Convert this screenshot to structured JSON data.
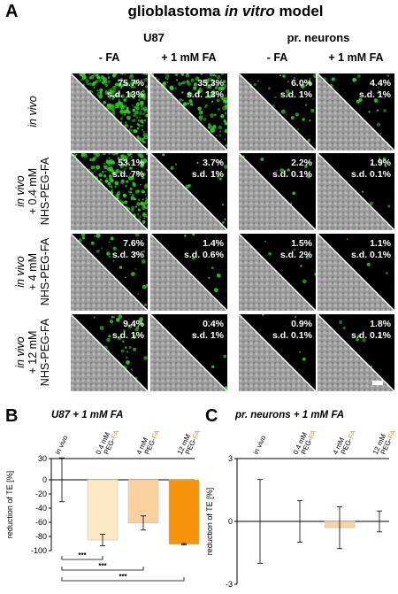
{
  "panelA": {
    "letter": "A",
    "title_plain": "glioblastoma ",
    "title_italic": "in vitro",
    "title_end": " model",
    "groups": [
      "U87",
      "pr. neurons"
    ],
    "columns": [
      "- FA",
      "+ 1 mM FA",
      "- FA",
      "+ 1 mM FA"
    ],
    "rows": [
      {
        "l1": "in vivo",
        "l2": "",
        "l3": ""
      },
      {
        "l1": "in vivo",
        "l2": "+ 0.4 mM",
        "l3": "NHS-PEG-FA"
      },
      {
        "l1": "in vivo",
        "l2": "+ 4 mM",
        "l3": "NHS-PEG-FA"
      },
      {
        "l1": "in vivo",
        "l2": "+ 12 mM",
        "l3": "NHS-PEG-FA"
      }
    ],
    "tiles": [
      [
        {
          "p": "75.7%",
          "s": "s.d. 13%",
          "green": 0.95
        },
        {
          "p": "35.3%",
          "s": "s.d. 13%",
          "green": 0.55
        },
        {
          "p": "6.0%",
          "s": "s.d. 1%",
          "green": 0.12
        },
        {
          "p": "4.4%",
          "s": "s.d. 1%",
          "green": 0.08
        }
      ],
      [
        {
          "p": "53.1%",
          "s": "s.d. 7%",
          "green": 0.8
        },
        {
          "p": "3.7%",
          "s": "s.d. 1%",
          "green": 0.06
        },
        {
          "p": "2.2%",
          "s": "s.d. 0.1%",
          "green": 0.04
        },
        {
          "p": "1.9%",
          "s": "s.d. 0.1%",
          "green": 0.04
        }
      ],
      [
        {
          "p": "7.6%",
          "s": "s.d. 3%",
          "green": 0.12
        },
        {
          "p": "1.4%",
          "s": "s.d. 0.6%",
          "green": 0.03
        },
        {
          "p": "1.5%",
          "s": "s.d. 2%",
          "green": 0.03
        },
        {
          "p": "1.1%",
          "s": "s.d. 0.1%",
          "green": 0.02
        }
      ],
      [
        {
          "p": "9.4%",
          "s": "s.d. 1%",
          "green": 0.15
        },
        {
          "p": "0.4%",
          "s": "s.d. 1%",
          "green": 0.02
        },
        {
          "p": "0.9%",
          "s": "s.d. 0.1%",
          "green": 0.02
        },
        {
          "p": "1.8%",
          "s": "s.d. 0.1%",
          "green": 0.03
        }
      ]
    ]
  },
  "chart_data": [
    {
      "panel": "B",
      "type": "bar",
      "title": "U87 + 1 mM FA",
      "categories": [
        "in vivo",
        "0.4 mM PEG-FA",
        "4 mM PEG-FA",
        "12 mM PEG-FA"
      ],
      "category_lines": [
        [
          "in vivo",
          ""
        ],
        [
          "0.4 mM",
          "PEG-FA"
        ],
        [
          "4 mM",
          "PEG-FA"
        ],
        [
          "12 mM",
          "PEG-FA"
        ]
      ],
      "values": [
        0,
        -85,
        -61,
        -91
      ],
      "errors": [
        31,
        8,
        10,
        1
      ],
      "colors": [
        "#ffffff",
        "#fde9c4",
        "#fbd29d",
        "#f7930a"
      ],
      "ylabel": "reduction of TE [%]",
      "ylim": [
        -100,
        30
      ],
      "yticks": [
        30,
        0,
        -20,
        -40,
        -60,
        -80,
        -100
      ],
      "significance": [
        "***",
        "***",
        "***"
      ]
    },
    {
      "panel": "C",
      "type": "bar",
      "title": "pr. neurons + 1 mM FA",
      "categories": [
        "in vivo",
        "0.4 mM PEG-FA",
        "4 mM PEG-FA",
        "12 mM PEG-FA"
      ],
      "category_lines": [
        [
          "in vivo",
          ""
        ],
        [
          "0.4 mM",
          "PEG-FA"
        ],
        [
          "4 mM",
          "PEG-FA"
        ],
        [
          "12 mM",
          "PEG-FA"
        ]
      ],
      "values": [
        0,
        0,
        -0.3,
        0
      ],
      "errors": [
        2.0,
        1.0,
        1.0,
        0.5
      ],
      "colors": [
        "#ffffff",
        "#ffffff",
        "#fbd29d",
        "#ffffff"
      ],
      "ylabel": "reduction of TE [%]",
      "ylim": [
        -3,
        3
      ],
      "yticks": [
        3,
        0,
        -3
      ]
    }
  ],
  "colors": {
    "fa_highlight": "#f7930a",
    "fluor": "#2ecc22"
  }
}
